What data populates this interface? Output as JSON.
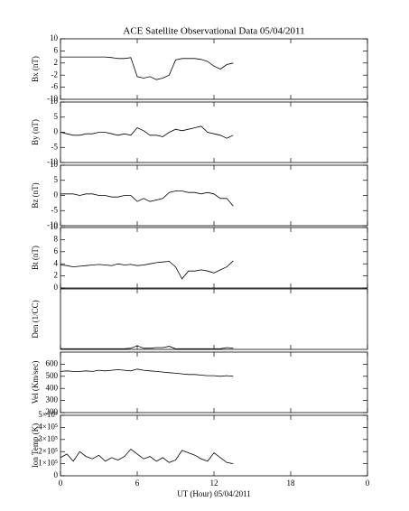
{
  "chart_data": [
    {
      "type": "line",
      "title": "ACE Satellite Observational Data   05/04/2011",
      "ylabel": "Bx (nT)",
      "ylim": [
        -10,
        10
      ],
      "yticks": [
        10,
        6,
        2,
        -2,
        -6,
        -10
      ],
      "xlim": [
        0,
        24
      ],
      "color": "#000000",
      "x": [
        0,
        0.5,
        1,
        1.5,
        2,
        2.5,
        3,
        3.5,
        4,
        4.5,
        5,
        5.5,
        6,
        6.5,
        7,
        7.5,
        8,
        8.5,
        9,
        9.5,
        10,
        10.5,
        11,
        11.5,
        12,
        12.5,
        13,
        13.5
      ],
      "values": [
        4,
        4,
        4,
        4,
        4,
        4,
        4,
        4,
        3.8,
        3.5,
        3.5,
        3.8,
        -2.5,
        -3,
        -2.5,
        -3.5,
        -3,
        -2,
        3,
        3.5,
        3.5,
        3.5,
        3.2,
        2.5,
        1,
        0,
        1.5,
        2
      ]
    },
    {
      "type": "line",
      "ylabel": "By (nT)",
      "ylim": [
        -10,
        10
      ],
      "yticks": [
        10,
        5,
        0,
        -5,
        -10
      ],
      "xlim": [
        0,
        24
      ],
      "color": "#000000",
      "x": [
        0,
        0.5,
        1,
        1.5,
        2,
        2.5,
        3,
        3.5,
        4,
        4.5,
        5,
        5.5,
        6,
        6.5,
        7,
        7.5,
        8,
        8.5,
        9,
        9.5,
        10,
        10.5,
        11,
        11.5,
        12,
        12.5,
        13,
        13.5
      ],
      "values": [
        0,
        -0.5,
        -1,
        -1,
        -0.5,
        -0.5,
        0,
        0,
        -0.5,
        -1,
        -0.5,
        -1,
        1.5,
        0.5,
        -1,
        -1,
        -1.5,
        0,
        1,
        0.5,
        1,
        1.5,
        2,
        0,
        -0.5,
        -1,
        -2,
        -1
      ]
    },
    {
      "type": "line",
      "ylabel": "Bz (nT)",
      "ylim": [
        -10,
        10
      ],
      "yticks": [
        10,
        5,
        0,
        -5,
        -10
      ],
      "xlim": [
        0,
        24
      ],
      "color": "#000000",
      "x": [
        0,
        0.5,
        1,
        1.5,
        2,
        2.5,
        3,
        3.5,
        4,
        4.5,
        5,
        5.5,
        6,
        6.5,
        7,
        7.5,
        8,
        8.5,
        9,
        9.5,
        10,
        10.5,
        11,
        11.5,
        12,
        12.5,
        13,
        13.5
      ],
      "values": [
        0.5,
        0.5,
        0.5,
        0,
        0.5,
        0.5,
        0,
        0,
        -0.5,
        -0.5,
        0,
        0,
        -2,
        -1,
        -2,
        -1.5,
        -1,
        1,
        1.5,
        1.5,
        1,
        1,
        0.5,
        1,
        0.5,
        -1,
        -1,
        -3.5
      ]
    },
    {
      "type": "line",
      "ylabel": "Bt (nT)",
      "ylim": [
        0,
        10
      ],
      "yticks": [
        10,
        8,
        6,
        4,
        2,
        0
      ],
      "xlim": [
        0,
        24
      ],
      "color": "#000000",
      "x": [
        0,
        0.5,
        1,
        1.5,
        2,
        2.5,
        3,
        3.5,
        4,
        4.5,
        5,
        5.5,
        6,
        6.5,
        7,
        7.5,
        8,
        8.5,
        9,
        9.5,
        10,
        10.5,
        11,
        11.5,
        12,
        12.5,
        13,
        13.5
      ],
      "values": [
        3.8,
        3.7,
        3.5,
        3.6,
        3.7,
        3.8,
        3.9,
        3.8,
        3.7,
        4,
        3.8,
        3.9,
        3.7,
        3.8,
        4,
        4.2,
        4.3,
        4.4,
        3.5,
        1.5,
        2.8,
        2.8,
        3,
        2.8,
        2.5,
        3,
        3.5,
        4.5
      ]
    },
    {
      "type": "line",
      "ylabel": "Den (1/CC)",
      "ylim": [
        0,
        10
      ],
      "xlim": [
        0,
        24
      ],
      "color": "#000000",
      "x": [
        0,
        0.5,
        1,
        1.5,
        2,
        2.5,
        3,
        3.5,
        4,
        4.5,
        5,
        5.5,
        6,
        6.5,
        7,
        7.5,
        8,
        8.5,
        9,
        9.5,
        10,
        10.5,
        11,
        11.5,
        12,
        12.5,
        13,
        13.5
      ],
      "values": [
        0.1,
        0.1,
        0.1,
        0.1,
        0.1,
        0.1,
        0.1,
        0.1,
        0.1,
        0.1,
        0.1,
        0.2,
        0.6,
        0.2,
        0.2,
        0.3,
        0.3,
        0.5,
        0.1,
        0.1,
        0.1,
        0.1,
        0.1,
        0.1,
        0.1,
        0.1,
        0.3,
        0.2
      ]
    },
    {
      "type": "line",
      "ylabel": "Vel (Km/sec)",
      "ylim": [
        200,
        700
      ],
      "yticks": [
        600,
        500,
        400,
        300,
        200
      ],
      "xlim": [
        0,
        24
      ],
      "color": "#000000",
      "x": [
        0,
        0.5,
        1,
        1.5,
        2,
        2.5,
        3,
        3.5,
        4,
        4.5,
        5,
        5.5,
        6,
        6.5,
        7,
        7.5,
        8,
        8.5,
        9,
        9.5,
        10,
        10.5,
        11,
        11.5,
        12,
        12.5,
        13,
        13.5
      ],
      "values": [
        540,
        545,
        540,
        540,
        545,
        540,
        550,
        545,
        550,
        555,
        550,
        545,
        560,
        550,
        545,
        540,
        535,
        530,
        525,
        520,
        515,
        515,
        510,
        505,
        505,
        500,
        505,
        500
      ]
    },
    {
      "type": "line",
      "ylabel": "Ion Temp (K)",
      "xlabel": "UT (Hour)  05/04/2011",
      "ylim": [
        0,
        500000
      ],
      "yticks": [
        {
          "value": 500000,
          "label": "5×10⁵"
        },
        {
          "value": 400000,
          "label": "4×10⁵"
        },
        {
          "value": 300000,
          "label": "3×10⁵"
        },
        {
          "value": 200000,
          "label": "2×10⁵"
        },
        {
          "value": 100000,
          "label": "1×10⁵"
        },
        0
      ],
      "xlim": [
        0,
        24
      ],
      "xticks": [
        0,
        6,
        12,
        18,
        {
          "value": 24,
          "label": "0"
        }
      ],
      "color": "#000000",
      "x": [
        0,
        0.5,
        1,
        1.5,
        2,
        2.5,
        3,
        3.5,
        4,
        4.5,
        5,
        5.5,
        6,
        6.5,
        7,
        7.5,
        8,
        8.5,
        9,
        9.5,
        10,
        10.5,
        11,
        11.5,
        12,
        12.5,
        13,
        13.5
      ],
      "values": [
        150000,
        180000,
        120000,
        200000,
        160000,
        140000,
        170000,
        120000,
        150000,
        130000,
        160000,
        220000,
        180000,
        140000,
        160000,
        120000,
        150000,
        110000,
        130000,
        210000,
        190000,
        170000,
        140000,
        120000,
        190000,
        150000,
        110000,
        100000
      ]
    }
  ]
}
